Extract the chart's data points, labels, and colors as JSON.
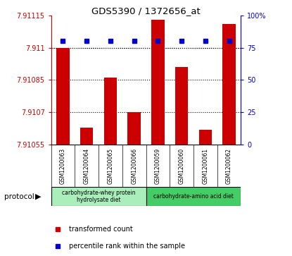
{
  "title": "GDS5390 / 1372656_at",
  "samples": [
    "GSM1200063",
    "GSM1200064",
    "GSM1200065",
    "GSM1200066",
    "GSM1200059",
    "GSM1200060",
    "GSM1200061",
    "GSM1200062"
  ],
  "bar_values": [
    7.911,
    7.91063,
    7.91086,
    7.9107,
    7.91113,
    7.91091,
    7.91062,
    7.91111
  ],
  "percentile_values": [
    80,
    80,
    80,
    80,
    80,
    80,
    80,
    80
  ],
  "y_min": 7.91055,
  "y_max": 7.91115,
  "y_ticks": [
    7.91055,
    7.9107,
    7.91085,
    7.911,
    7.91115
  ],
  "y_tick_labels": [
    "7.91055",
    "7.9107",
    "7.91085",
    "7.911",
    "7.91115"
  ],
  "right_y_ticks": [
    0,
    25,
    50,
    75,
    100
  ],
  "right_y_labels": [
    "0",
    "25",
    "50",
    "75",
    "100%"
  ],
  "bar_color": "#cc0000",
  "dot_color": "#0000cc",
  "protocol_groups": [
    {
      "label": "carbohydrate-whey protein\nhydrolysate diet",
      "start": 0,
      "end": 4,
      "color": "#aaeebb"
    },
    {
      "label": "carbohydrate-amino acid diet",
      "start": 4,
      "end": 8,
      "color": "#44cc66"
    }
  ],
  "protocol_label": "protocol",
  "legend_items": [
    {
      "label": "transformed count",
      "color": "#cc0000"
    },
    {
      "label": "percentile rank within the sample",
      "color": "#0000cc"
    }
  ],
  "axis_color_left": "#cc0000",
  "axis_color_right": "#0000cc",
  "bar_width": 0.55,
  "fig_bg": "#ffffff",
  "plot_bg": "#ffffff",
  "xticklabel_bg": "#cccccc",
  "dot_pct": 80
}
